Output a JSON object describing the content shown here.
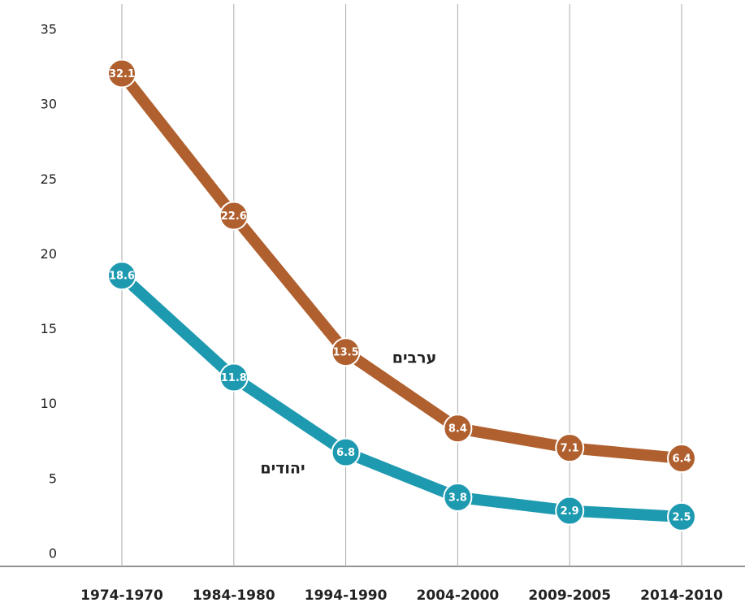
{
  "chart_data": {
    "type": "line",
    "categories": [
      "1974-1970",
      "1984-1980",
      "1994-1990",
      "2004-2000",
      "2009-2005",
      "2014-2010"
    ],
    "series": [
      {
        "name": "ערבים",
        "color": "#b0602e",
        "values": [
          32.1,
          22.6,
          13.5,
          8.4,
          7.1,
          6.4
        ]
      },
      {
        "name": "יהודים",
        "color": "#1e9ab0",
        "values": [
          18.6,
          11.8,
          6.8,
          3.8,
          2.9,
          2.5
        ]
      }
    ],
    "ylim": [
      0,
      35
    ],
    "yticks": [
      0,
      5,
      10,
      15,
      20,
      25,
      30,
      35
    ],
    "grid": true
  }
}
